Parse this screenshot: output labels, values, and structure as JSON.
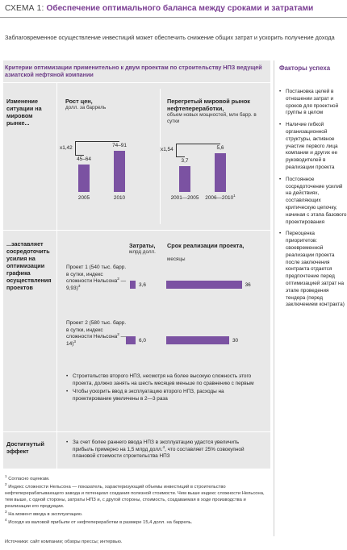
{
  "header": {
    "prefix": "СХЕМА 1:",
    "title": "Обеспечение оптимального баланса между сроками и затратами",
    "subtitle": "Заблаговременное осуществление инвестиций может обеспечить снижение общих затрат и ускорить получение дохода"
  },
  "panel": {
    "heading": "Критерии оптимизации применительно к двум проектам по строительству НПЗ ведущей азиатской нефтяной компании",
    "section1_label": "Изменение ситуации на мировом рынке...",
    "section2_label": "...заставляет сосредоточить усилия на оптимизации графика осуществления проектов",
    "section3_label": "Достигнутый эффект"
  },
  "chart_data": [
    {
      "type": "bar",
      "title": "Рост цен,",
      "subtitle": "долл. за баррель",
      "categories": [
        "2005",
        "2010"
      ],
      "value_labels": [
        "45–64",
        "74–91"
      ],
      "values": [
        54.5,
        82.5
      ],
      "multiplier": "x1,42"
    },
    {
      "type": "bar",
      "title": "Перегретый мировой рынок нефтепереработки,",
      "subtitle": "объем новых мощностей, млн барр. в сутки",
      "categories": [
        "2001—2005",
        "2006—2010"
      ],
      "category_sup": [
        "",
        "1"
      ],
      "value_labels": [
        "3,7",
        "5,6"
      ],
      "values": [
        3.7,
        5.6
      ],
      "multiplier": "x1,54"
    },
    {
      "type": "bar",
      "title": "Затраты,",
      "subtitle": "млрд долл.",
      "categories": [
        "Проект 1",
        "Проект 2"
      ],
      "value_labels": [
        "3,6",
        "6,0"
      ],
      "values": [
        3.6,
        6.0
      ]
    },
    {
      "type": "bar",
      "title": "Срок реализации проекта,",
      "subtitle": "месяцы",
      "categories": [
        "Проект 1",
        "Проект 2"
      ],
      "value_labels": [
        "36",
        "30"
      ],
      "values": [
        36,
        30
      ]
    }
  ],
  "projects": [
    {
      "text": "Проект 1 (540 тыс. барр. в сутки, индекс сложности Нельсона",
      "sup1": "2",
      "tail": " — 9,93)",
      "sup2": "3"
    },
    {
      "text": "Проект 2 (580 тыс. барр. в сутки, индекс сложности Нельсона",
      "sup1": "2",
      "tail": " — 14)",
      "sup2": "3"
    }
  ],
  "section2_bullets": [
    "Строительство второго НПЗ, несмотря на более высокую сложность этого проекта, должно занять на шесть месяцев меньше по сравнению с первым",
    "Чтобы ускорить ввод в эксплуатацию второго НПЗ, расходы на проектирование увеличены в 2—3 раза"
  ],
  "section3_bullet": {
    "text": "За счет более раннего ввода НПЗ в эксплуатацию удастся увеличить прибыль примерно на 1,5 млрд долл.",
    "sup": "4",
    "tail": ", что составляет 25% совокупной плановой стоимости строительства НПЗ"
  },
  "factors": {
    "title": "Факторы успеха",
    "items": [
      "Постановка целей в отношении затрат и сроков для проектной группы в целом",
      "Наличие гибкой организационной структуры, активное участие первого лица компании и других ее руководителей в реализации проекта",
      "Постоянное сосредоточение усилий на действиях, составляющих критическую цепочку, начиная с этапа базового проектирования",
      "Переоценка приоритетов: своевременной реализации проекта после заключения контракта отдается предпочтение перед оптимизацией затрат на этапе проведения тендера (перед заключением контракта)"
    ]
  },
  "footnotes": [
    {
      "num": "1",
      "text": "Согласно оценкам."
    },
    {
      "num": "2",
      "text": "Индекс сложности Нельсона — показатель, характеризующий объемы инвестиций в строительство нефтеперерабатывающего завода и потенциал создания полезной стоимости. Чем выше индекс сложности Нельсона, тем выше, с одной стороны, затраты НПЗ и, с другой стороны, стоимость, создаваемая в ходе производства и реализации его продукции."
    },
    {
      "num": "3",
      "text": "На момент ввода в эксплуатацию."
    },
    {
      "num": "4",
      "text": "Исходя из валовой прибыли от нефтепереработки в размере 15,4 долл. на баррель."
    }
  ],
  "source": "Источники: сайт компании; обзоры прессы; интервью.",
  "colors": {
    "accent": "#7a3d92",
    "bar": "#7b52a2",
    "panel": "#e8e8e8"
  }
}
